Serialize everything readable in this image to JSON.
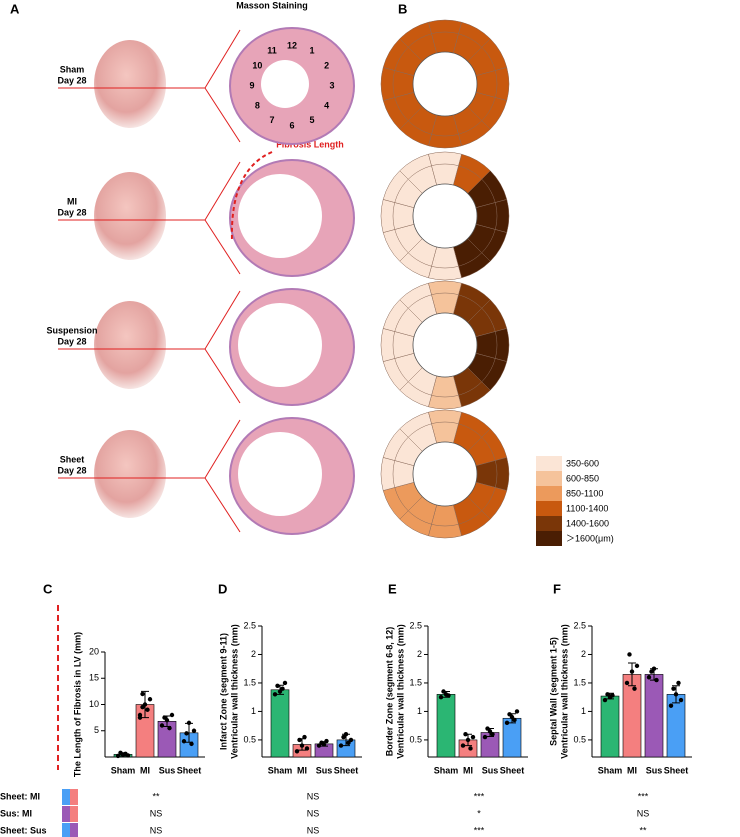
{
  "panel_labels": [
    "A",
    "B",
    "C",
    "D",
    "E",
    "F"
  ],
  "masson_title": "Masson Staining",
  "fibrosis_annotation": "Fibrosis Length",
  "rows": [
    [
      "Sham",
      "Day 28"
    ],
    [
      "MI",
      "Day 28"
    ],
    [
      "Suspension",
      "Day 28"
    ],
    [
      "Sheet",
      "Day 28"
    ]
  ],
  "segment_numbers": [
    "1",
    "2",
    "3",
    "4",
    "5",
    "6",
    "7",
    "8",
    "9",
    "10",
    "11",
    "12"
  ],
  "thickness_legend": [
    {
      "label": "350-600",
      "color": "#fbe5d6"
    },
    {
      "label": "600-850",
      "color": "#f5c39b"
    },
    {
      "label": "850-1100",
      "color": "#ec9a5c"
    },
    {
      "label": "1100-1400",
      "color": "#c8590f"
    },
    {
      "label": "1400-1600",
      "color": "#7a3608"
    },
    {
      "label": "＞1600(μm)",
      "color": "#4a1e03"
    }
  ],
  "bullseye": [
    [
      "#c8590f",
      "#c8590f",
      "#c8590f",
      "#c8590f",
      "#c8590f",
      "#c8590f",
      "#c8590f",
      "#c8590f",
      "#c8590f",
      "#c8590f",
      "#c8590f",
      "#c8590f"
    ],
    [
      "#c8590f",
      "#4a1e03",
      "#4a1e03",
      "#4a1e03",
      "#4a1e03",
      "#fbe5d6",
      "#fbe5d6",
      "#fbe5d6",
      "#fbe5d6",
      "#fbe5d6",
      "#fbe5d6",
      "#fbe5d6"
    ],
    [
      "#7a3608",
      "#7a3608",
      "#4a1e03",
      "#4a1e03",
      "#7a3608",
      "#f5c39b",
      "#fbe5d6",
      "#fbe5d6",
      "#fbe5d6",
      "#fbe5d6",
      "#fbe5d6",
      "#f5c39b"
    ],
    [
      "#c8590f",
      "#c8590f",
      "#7a3608",
      "#c8590f",
      "#c8590f",
      "#ec9a5c",
      "#ec9a5c",
      "#ec9a5c",
      "#fbe5d6",
      "#fbe5d6",
      "#fbe5d6",
      "#f5c39b"
    ]
  ],
  "chart_data": [
    {
      "type": "bar",
      "ylabel": [
        "The Length of Fibrosis in LV (mm)"
      ],
      "categories": [
        "Sham",
        "MI",
        "Sus",
        "Sheet"
      ],
      "colors": [
        "#2bb673",
        "#f47f7f",
        "#9b59b6",
        "#4a9ff5"
      ],
      "values": [
        0.5,
        10,
        6.8,
        4.6
      ],
      "errors": [
        0.3,
        2.5,
        1,
        1.8
      ],
      "points": [
        [
          0.2,
          0.8,
          0.4,
          0.6,
          0.3
        ],
        [
          8,
          12,
          10,
          9,
          11,
          7.5,
          9.5
        ],
        [
          6,
          7.5,
          7,
          5.5,
          8
        ],
        [
          3,
          4.5,
          6.5,
          2.5,
          5
        ]
      ],
      "ylim": [
        0,
        20
      ],
      "yticks": [
        5,
        10,
        15,
        20
      ]
    },
    {
      "type": "bar",
      "ylabel": [
        "Infarct Zone (segment 9-11)",
        "Ventricular wall thickness (mm)"
      ],
      "categories": [
        "Sham",
        "MI",
        "Sus",
        "Sheet"
      ],
      "colors": [
        "#2bb673",
        "#f47f7f",
        "#9b59b6",
        "#4a9ff5"
      ],
      "values": [
        1.38,
        0.42,
        0.43,
        0.5
      ],
      "errors": [
        0.08,
        0.1,
        0.04,
        0.1
      ],
      "points": [
        [
          1.3,
          1.45,
          1.35,
          1.4,
          1.5
        ],
        [
          0.3,
          0.5,
          0.4,
          0.55,
          0.35
        ],
        [
          0.4,
          0.45,
          0.42,
          0.48
        ],
        [
          0.4,
          0.55,
          0.6,
          0.45,
          0.5
        ]
      ],
      "ylim": [
        0.2,
        2.5
      ],
      "yticks": [
        0.5,
        1.0,
        1.5,
        2.0,
        2.5
      ]
    },
    {
      "type": "bar",
      "ylabel": [
        "Border Zone (segment 6-8, 12)",
        "Ventricular wall thickness (mm)"
      ],
      "categories": [
        "Sham",
        "MI",
        "Sus",
        "Sheet"
      ],
      "colors": [
        "#2bb673",
        "#f47f7f",
        "#9b59b6",
        "#4a9ff5"
      ],
      "values": [
        1.3,
        0.5,
        0.63,
        0.88
      ],
      "errors": [
        0.05,
        0.1,
        0.07,
        0.08
      ],
      "points": [
        [
          1.25,
          1.35,
          1.3,
          1.28
        ],
        [
          0.4,
          0.6,
          0.5,
          0.35,
          0.55
        ],
        [
          0.55,
          0.7,
          0.65,
          0.6
        ],
        [
          0.8,
          0.95,
          0.9,
          0.85,
          1.0
        ]
      ],
      "ylim": [
        0.2,
        2.5
      ],
      "yticks": [
        0.5,
        1.0,
        1.5,
        2.0,
        2.5
      ]
    },
    {
      "type": "bar",
      "ylabel": [
        "Septal Wall (segment 1-5)",
        "Ventricular wall thickness (mm)"
      ],
      "categories": [
        "Sham",
        "MI",
        "Sus",
        "Sheet"
      ],
      "colors": [
        "#2bb673",
        "#f47f7f",
        "#9b59b6",
        "#4a9ff5"
      ],
      "values": [
        1.27,
        1.65,
        1.65,
        1.3
      ],
      "errors": [
        0.05,
        0.2,
        0.1,
        0.15
      ],
      "points": [
        [
          1.2,
          1.3,
          1.25,
          1.28
        ],
        [
          1.5,
          2.0,
          1.7,
          1.4,
          1.8
        ],
        [
          1.6,
          1.7,
          1.75,
          1.55
        ],
        [
          1.1,
          1.4,
          1.3,
          1.5,
          1.2
        ]
      ],
      "ylim": [
        0.2,
        2.5
      ],
      "yticks": [
        0.5,
        1.0,
        1.5,
        2.0,
        2.5
      ]
    }
  ],
  "comparisons": [
    {
      "label": "Sheet: MI",
      "colors": [
        "#4a9ff5",
        "#f47f7f"
      ],
      "results": [
        "**",
        "NS",
        "***",
        "***"
      ]
    },
    {
      "label": "Sus: MI",
      "colors": [
        "#9b59b6",
        "#f47f7f"
      ],
      "results": [
        "NS",
        "NS",
        "*",
        "NS"
      ]
    },
    {
      "label": "Sheet: Sus",
      "colors": [
        "#4a9ff5",
        "#9b59b6"
      ],
      "results": [
        "NS",
        "NS",
        "***",
        "**"
      ]
    }
  ]
}
